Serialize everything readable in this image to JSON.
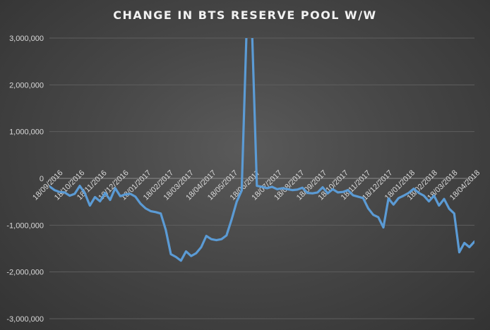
{
  "chart_data": {
    "type": "line",
    "title": "CHANGE IN BTS RESERVE POOL W/W",
    "xlabel": "",
    "ylabel": "",
    "ylim": [
      -3000000,
      3000000
    ],
    "yticks": [
      3000000,
      2000000,
      1000000,
      0,
      -1000000,
      -2000000,
      -3000000
    ],
    "ytick_labels": [
      "3,000,000",
      "2,000,000",
      "1,000,000",
      "0",
      "-1,000,000",
      "-2,000,000",
      "-3,000,000"
    ],
    "grid": true,
    "line_color": "#5b9bd5",
    "x_tick_labels": [
      "18/09/2016",
      "18/10/2016",
      "18/11/2016",
      "18/12/2016",
      "18/01/2017",
      "18/02/2017",
      "18/03/2017",
      "18/04/2017",
      "18/05/2017",
      "18/06/2017",
      "18/07/2017",
      "18/08/2017",
      "18/09/2017",
      "18/10/2017",
      "18/11/2017",
      "18/12/2017",
      "18/01/2018",
      "18/02/2018",
      "18/03/2018",
      "18/04/2018"
    ],
    "series": [
      {
        "x": [
          "2016-09-18",
          "2016-09-25",
          "2016-10-02",
          "2016-10-09",
          "2016-10-16",
          "2016-10-23",
          "2016-10-30",
          "2016-11-06",
          "2016-11-13",
          "2016-11-20",
          "2016-11-27",
          "2016-12-04",
          "2016-12-11",
          "2016-12-18",
          "2016-12-25",
          "2017-01-01",
          "2017-01-08",
          "2017-01-15",
          "2017-01-22",
          "2017-01-29",
          "2017-02-05",
          "2017-02-12",
          "2017-02-19",
          "2017-02-26",
          "2017-03-05",
          "2017-03-12",
          "2017-03-19",
          "2017-03-26",
          "2017-04-02",
          "2017-04-09",
          "2017-04-16",
          "2017-04-23",
          "2017-04-30",
          "2017-05-07",
          "2017-05-14",
          "2017-05-21",
          "2017-05-28",
          "2017-06-04",
          "2017-06-11",
          "2017-06-18",
          "2017-06-25",
          "2017-07-02",
          "2017-07-09",
          "2017-07-16",
          "2017-07-23",
          "2017-07-30",
          "2017-08-06",
          "2017-08-13",
          "2017-08-20",
          "2017-08-27",
          "2017-09-03",
          "2017-09-10",
          "2017-09-17",
          "2017-09-24",
          "2017-10-01",
          "2017-10-08",
          "2017-10-15",
          "2017-10-22",
          "2017-10-29",
          "2017-11-05",
          "2017-11-12",
          "2017-11-19",
          "2017-11-26",
          "2017-12-03",
          "2017-12-10",
          "2017-12-17",
          "2017-12-24",
          "2017-12-31",
          "2018-01-07",
          "2018-01-14",
          "2018-01-21",
          "2018-01-28",
          "2018-02-04",
          "2018-02-11",
          "2018-02-18",
          "2018-02-25",
          "2018-03-04",
          "2018-03-11",
          "2018-03-18",
          "2018-03-25",
          "2018-04-01",
          "2018-04-08",
          "2018-04-15",
          "2018-04-22",
          "2018-04-29"
        ],
        "y": [
          -170000,
          -250000,
          -290000,
          -300000,
          -370000,
          -330000,
          -160000,
          -320000,
          -580000,
          -400000,
          -490000,
          -310000,
          -460000,
          -210000,
          -380000,
          -340000,
          -330000,
          -390000,
          -540000,
          -640000,
          -700000,
          -720000,
          -750000,
          -1100000,
          -1620000,
          -1680000,
          -1760000,
          -1560000,
          -1660000,
          -1600000,
          -1470000,
          -1230000,
          -1300000,
          -1320000,
          -1300000,
          -1220000,
          -880000,
          -500000,
          -260000,
          3300000,
          3300000,
          -160000,
          -180000,
          -210000,
          -180000,
          -230000,
          -210000,
          -230000,
          -250000,
          -240000,
          -200000,
          -310000,
          -320000,
          -300000,
          -190000,
          -320000,
          -230000,
          -300000,
          -290000,
          -250000,
          -360000,
          -390000,
          -420000,
          -640000,
          -780000,
          -830000,
          -1050000,
          -430000,
          -560000,
          -420000,
          -370000,
          -310000,
          -220000,
          -310000,
          -370000,
          -490000,
          -370000,
          -580000,
          -440000,
          -650000,
          -750000,
          -1580000,
          -1380000,
          -1470000,
          -1350000
        ]
      }
    ]
  }
}
